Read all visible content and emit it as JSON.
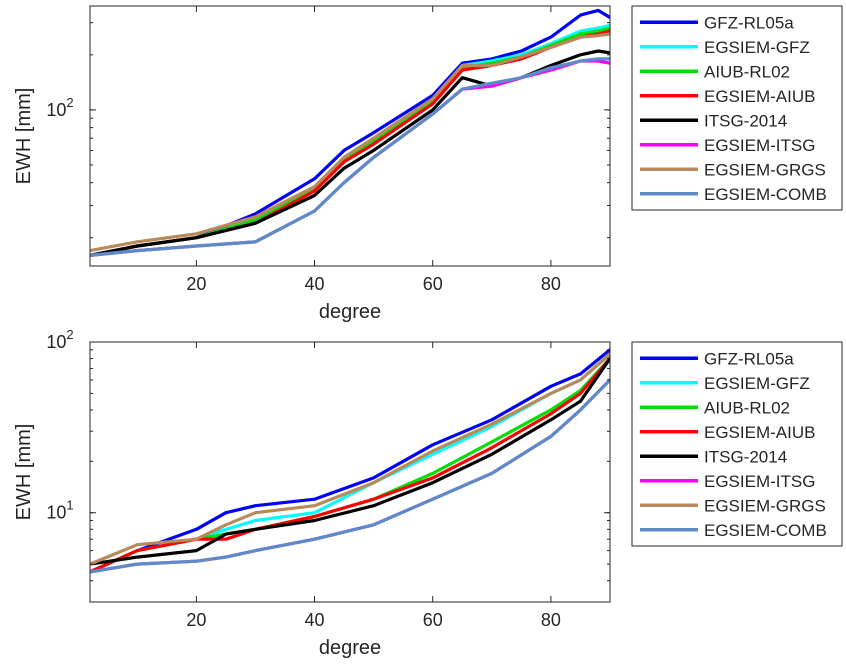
{
  "chart_data": [
    {
      "type": "line",
      "xlabel": "degree",
      "ylabel": "EWH [mm]",
      "xlim": [
        2,
        90
      ],
      "ylim": [
        14,
        370
      ],
      "yscale": "log",
      "xticks": [
        20,
        40,
        60,
        80
      ],
      "yticks": [
        {
          "value": 100,
          "base": "10",
          "exp": "2"
        }
      ],
      "grid": false,
      "legend_position": "outside-right",
      "series": [
        {
          "name": "GFZ-RL05a",
          "color": "#0000ff",
          "x": [
            2,
            10,
            20,
            30,
            40,
            45,
            50,
            60,
            65,
            70,
            75,
            80,
            85,
            88,
            90
          ],
          "y": [
            16,
            18,
            20,
            27,
            42,
            60,
            75,
            120,
            180,
            190,
            210,
            250,
            330,
            350,
            320
          ]
        },
        {
          "name": "EGSIEM-GFZ",
          "color": "#00ffff",
          "x": [
            2,
            10,
            20,
            30,
            40,
            45,
            50,
            60,
            65,
            70,
            75,
            80,
            85,
            88,
            90
          ],
          "y": [
            16,
            18,
            20,
            25,
            38,
            55,
            70,
            115,
            175,
            185,
            200,
            230,
            270,
            280,
            290
          ]
        },
        {
          "name": "AIUB-RL02",
          "color": "#00e000",
          "x": [
            2,
            10,
            20,
            30,
            40,
            45,
            50,
            60,
            65,
            70,
            75,
            80,
            85,
            88,
            90
          ],
          "y": [
            16,
            18,
            20,
            25,
            37,
            54,
            68,
            112,
            170,
            180,
            195,
            225,
            260,
            270,
            280
          ]
        },
        {
          "name": "EGSIEM-AIUB",
          "color": "#ff0000",
          "x": [
            2,
            10,
            20,
            30,
            40,
            45,
            50,
            60,
            65,
            70,
            75,
            80,
            85,
            88,
            90
          ],
          "y": [
            16,
            18,
            20,
            24,
            36,
            52,
            65,
            108,
            165,
            175,
            190,
            220,
            250,
            260,
            270
          ]
        },
        {
          "name": "ITSG-2014",
          "color": "#000000",
          "x": [
            2,
            10,
            20,
            30,
            40,
            45,
            50,
            60,
            65,
            70,
            75,
            80,
            85,
            88,
            90
          ],
          "y": [
            16,
            18,
            20,
            24,
            34,
            48,
            60,
            100,
            150,
            135,
            150,
            175,
            200,
            210,
            205
          ]
        },
        {
          "name": "EGSIEM-ITSG",
          "color": "#ff00ff",
          "x": [
            2,
            10,
            20,
            30,
            40,
            45,
            50,
            60,
            65,
            70,
            75,
            80,
            85,
            88,
            90
          ],
          "y": [
            16,
            17,
            18,
            19,
            28,
            40,
            55,
            95,
            130,
            135,
            150,
            165,
            185,
            185,
            180
          ]
        },
        {
          "name": "EGSIEM-GRGS",
          "color": "#b8895a",
          "x": [
            2,
            10,
            20,
            30,
            40,
            45,
            50,
            60,
            65,
            70,
            75,
            80,
            85,
            88,
            90
          ],
          "y": [
            17,
            19,
            21,
            26,
            38,
            55,
            70,
            115,
            175,
            175,
            195,
            220,
            250,
            255,
            260
          ]
        },
        {
          "name": "EGSIEM-COMB",
          "color": "#5b8cc7",
          "x": [
            2,
            10,
            20,
            30,
            40,
            45,
            50,
            60,
            65,
            70,
            75,
            80,
            85,
            88,
            90
          ],
          "y": [
            16,
            17,
            18,
            19,
            28,
            40,
            55,
            95,
            130,
            140,
            150,
            170,
            185,
            190,
            190
          ]
        }
      ]
    },
    {
      "type": "line",
      "xlabel": "degree",
      "ylabel": "EWH [mm]",
      "xlim": [
        2,
        90
      ],
      "ylim": [
        3,
        100
      ],
      "yscale": "log",
      "xticks": [
        20,
        40,
        60,
        80
      ],
      "yticks": [
        {
          "value": 10,
          "base": "10",
          "exp": "1"
        },
        {
          "value": 100,
          "base": "10",
          "exp": "2"
        }
      ],
      "grid": false,
      "legend_position": "outside-right",
      "series": [
        {
          "name": "GFZ-RL05a",
          "color": "#0000ff",
          "x": [
            2,
            10,
            20,
            25,
            30,
            40,
            50,
            60,
            70,
            80,
            85,
            90
          ],
          "y": [
            4.5,
            6,
            8,
            10,
            11,
            12,
            16,
            25,
            35,
            55,
            65,
            90
          ]
        },
        {
          "name": "EGSIEM-GFZ",
          "color": "#00ffff",
          "x": [
            2,
            10,
            20,
            25,
            30,
            40,
            50,
            60,
            70,
            80,
            85,
            90
          ],
          "y": [
            4.5,
            6,
            7,
            8,
            9,
            10,
            15,
            22,
            32,
            50,
            60,
            85
          ]
        },
        {
          "name": "AIUB-RL02",
          "color": "#00e000",
          "x": [
            2,
            10,
            20,
            25,
            30,
            40,
            50,
            60,
            70,
            80,
            85,
            90
          ],
          "y": [
            4.5,
            6,
            7,
            7.5,
            8,
            9.5,
            12,
            17,
            26,
            40,
            52,
            80
          ]
        },
        {
          "name": "EGSIEM-AIUB",
          "color": "#ff0000",
          "x": [
            2,
            10,
            20,
            25,
            30,
            40,
            50,
            60,
            70,
            80,
            85,
            90
          ],
          "y": [
            4.5,
            6,
            7,
            7,
            8,
            9.5,
            12,
            16,
            24,
            38,
            50,
            80
          ]
        },
        {
          "name": "ITSG-2014",
          "color": "#000000",
          "x": [
            2,
            10,
            20,
            25,
            30,
            40,
            50,
            60,
            70,
            80,
            85,
            90
          ],
          "y": [
            5,
            5.5,
            6,
            7.5,
            8,
            9,
            11,
            15,
            22,
            35,
            45,
            80
          ]
        },
        {
          "name": "EGSIEM-ITSG",
          "color": "#ff00ff",
          "x": [
            2,
            10,
            20,
            25,
            30,
            40,
            50,
            60,
            70,
            80,
            85,
            90
          ],
          "y": [
            4.5,
            5,
            5.2,
            5.5,
            6,
            7,
            8.5,
            12,
            17,
            28,
            40,
            60
          ]
        },
        {
          "name": "EGSIEM-GRGS",
          "color": "#b8895a",
          "x": [
            2,
            10,
            20,
            25,
            30,
            40,
            50,
            60,
            70,
            80,
            85,
            90
          ],
          "y": [
            5,
            6.5,
            7,
            8.5,
            10,
            11,
            15,
            23,
            33,
            50,
            60,
            85
          ]
        },
        {
          "name": "EGSIEM-COMB",
          "color": "#5b8cc7",
          "x": [
            2,
            10,
            20,
            25,
            30,
            40,
            50,
            60,
            70,
            80,
            85,
            90
          ],
          "y": [
            4.5,
            5,
            5.2,
            5.5,
            6,
            7,
            8.5,
            12,
            17,
            28,
            40,
            60
          ]
        }
      ]
    }
  ]
}
